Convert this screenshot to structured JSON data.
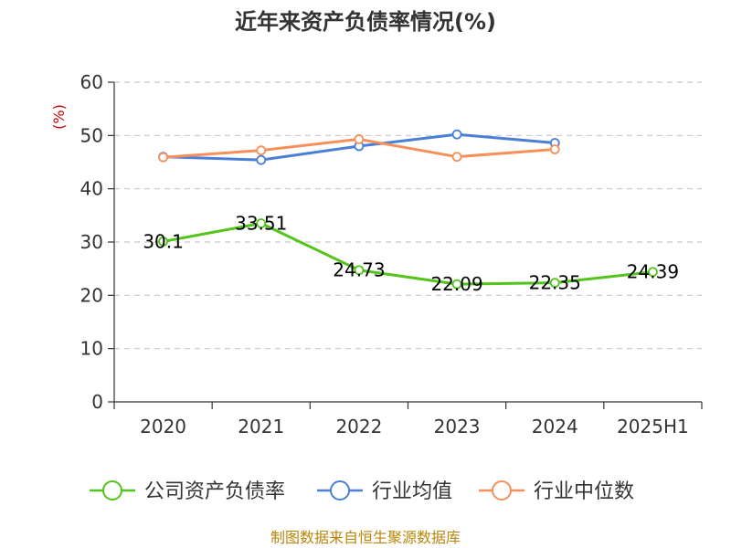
{
  "chart_data": {
    "type": "line",
    "title": "近年来资产负债率情况(%)",
    "ylabel": "(%)",
    "ylim": [
      0,
      60
    ],
    "yticks": [
      0,
      10,
      20,
      30,
      40,
      50,
      60
    ],
    "categories": [
      "2020",
      "2021",
      "2022",
      "2023",
      "2024",
      "2025H1"
    ],
    "grid": true,
    "legend_position": "bottom",
    "series": [
      {
        "name": "公司资产负债率",
        "color": "#52c41a",
        "values": [
          30.1,
          33.51,
          24.73,
          22.09,
          22.35,
          24.39
        ],
        "labels": [
          "30.1",
          "33.51",
          "24.73",
          "22.09",
          "22.35",
          "24.39"
        ]
      },
      {
        "name": "行业均值",
        "color": "#4a7fd6",
        "values": [
          46.0,
          45.4,
          48.0,
          50.2,
          48.6,
          null
        ]
      },
      {
        "name": "行业中位数",
        "color": "#f5905a",
        "values": [
          45.9,
          47.2,
          49.3,
          46.0,
          47.4,
          null
        ]
      }
    ],
    "source": "制图数据来自恒生聚源数据库"
  }
}
